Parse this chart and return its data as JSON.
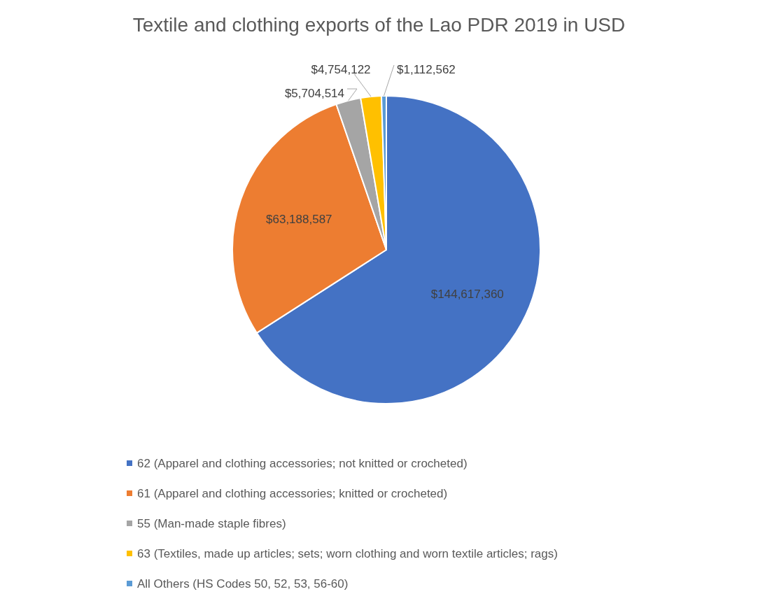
{
  "chart_data": {
    "type": "pie",
    "title": "Textile and clothing exports of the Lao PDR 2019 in USD",
    "categories": [
      "62 (Apparel and clothing accessories; not knitted or crocheted)",
      "61 (Apparel and clothing accessories; knitted or crocheted)",
      "55 (Man-made staple fibres)",
      "63 (Textiles, made up articles; sets; worn clothing and worn textile articles; rags)",
      "All Others (HS Codes 50, 52, 53, 56-60)"
    ],
    "values": [
      144617360,
      63188587,
      5704514,
      4754122,
      1112562
    ],
    "value_labels": [
      "$144,617,360",
      "$63,188,587",
      "$5,704,514",
      "$4,754,122",
      "$1,112,562"
    ],
    "colors": [
      "#4472c4",
      "#ed7d31",
      "#a5a5a5",
      "#ffc000",
      "#5b9bd5"
    ],
    "legend": "bottom"
  }
}
